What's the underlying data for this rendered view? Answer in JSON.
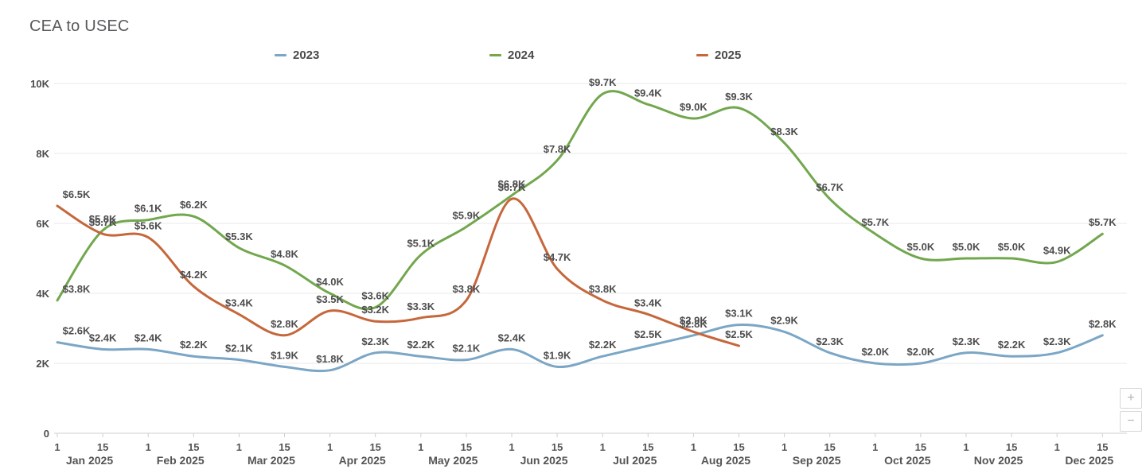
{
  "title": "CEA to USEC",
  "legend": [
    {
      "label": "2023",
      "color": "#7ba6c5"
    },
    {
      "label": "2024",
      "color": "#72a74e"
    },
    {
      "label": "2025",
      "color": "#c6673b"
    }
  ],
  "controls": {
    "zoom_in_label": "+",
    "zoom_out_label": "−"
  },
  "chart_data": {
    "type": "line",
    "title": "CEA to USEC",
    "value_unit": "USD thousands",
    "label_format": "$#.#K",
    "grid": true,
    "legend_position": "top",
    "ylim": [
      0,
      10000
    ],
    "y_tick_labels": [
      "0",
      "2K",
      "4K",
      "6K",
      "8K",
      "10K"
    ],
    "y_tick_values": [
      0,
      2,
      4,
      6,
      8,
      10
    ],
    "x_months": [
      "Jan 2025",
      "Feb 2025",
      "Mar 2025",
      "Apr 2025",
      "May 2025",
      "Jun 2025",
      "Jul 2025",
      "Aug 2025",
      "Sep 2025",
      "Oct 2025",
      "Nov 2025",
      "Dec 2025"
    ],
    "x_day_ticks": [
      "1",
      "15"
    ],
    "x_points": [
      "Jan 1",
      "Jan 15",
      "Feb 1",
      "Feb 15",
      "Mar 1",
      "Mar 15",
      "Apr 1",
      "Apr 15",
      "May 1",
      "May 15",
      "Jun 1",
      "Jun 15",
      "Jul 1",
      "Jul 15",
      "Aug 1",
      "Aug 15",
      "Sep 1",
      "Sep 15",
      "Oct 1",
      "Oct 15",
      "Nov 1",
      "Nov 15",
      "Dec 1",
      "Dec 15"
    ],
    "series": [
      {
        "name": "2023",
        "color": "#7ba6c5",
        "values": [
          2.6,
          2.4,
          2.4,
          2.2,
          2.1,
          1.9,
          1.8,
          2.3,
          2.2,
          2.1,
          2.4,
          1.9,
          2.2,
          2.5,
          2.8,
          3.1,
          2.9,
          2.3,
          2.0,
          2.0,
          2.3,
          2.2,
          2.3,
          2.8
        ],
        "labels": [
          "$2.6K",
          "$2.4K",
          "$2.4K",
          "$2.2K",
          "$2.1K",
          "$1.9K",
          "$1.8K",
          "$2.3K",
          "$2.2K",
          "$2.1K",
          "$2.4K",
          "$1.9K",
          "$2.2K",
          "$2.5K",
          "$2.8K",
          "$3.1K",
          "$2.9K",
          "$2.3K",
          "$2.0K",
          "$2.0K",
          "$2.3K",
          "$2.2K",
          "$2.3K",
          "$2.8K"
        ]
      },
      {
        "name": "2024",
        "color": "#72a74e",
        "values": [
          3.8,
          5.8,
          6.1,
          6.2,
          5.3,
          4.8,
          4.0,
          3.6,
          5.1,
          5.9,
          6.8,
          7.8,
          9.7,
          9.4,
          9.0,
          9.3,
          8.3,
          6.7,
          5.7,
          5.0,
          5.0,
          5.0,
          4.9,
          5.7
        ],
        "labels": [
          "$3.8K",
          "$5.8K",
          "$6.1K",
          "$6.2K",
          "$5.3K",
          "$4.8K",
          "$4.0K",
          "$3.6K",
          "$5.1K",
          "$5.9K",
          "$6.8K",
          "$7.8K",
          "$9.7K",
          "$9.4K",
          "$9.0K",
          "$9.3K",
          "$8.3K",
          "$6.7K",
          "$5.7K",
          "$5.0K",
          "$5.0K",
          "$5.0K",
          "$4.9K",
          "$5.7K"
        ]
      },
      {
        "name": "2025",
        "color": "#c6673b",
        "values": [
          6.5,
          5.7,
          5.6,
          4.2,
          3.4,
          2.8,
          3.5,
          3.2,
          3.3,
          3.8,
          6.7,
          4.7,
          3.8,
          3.4,
          2.9,
          2.5
        ],
        "labels": [
          "$6.5K",
          "$5.7K",
          "$5.6K",
          "$4.2K",
          "$3.4K",
          "$2.8K",
          "$3.5K",
          "$3.2K",
          "$3.3K",
          "$3.8K",
          "$6.7K",
          "$4.7K",
          "$3.8K",
          "$3.4K",
          "$2.9K",
          "$2.5K"
        ]
      }
    ]
  }
}
